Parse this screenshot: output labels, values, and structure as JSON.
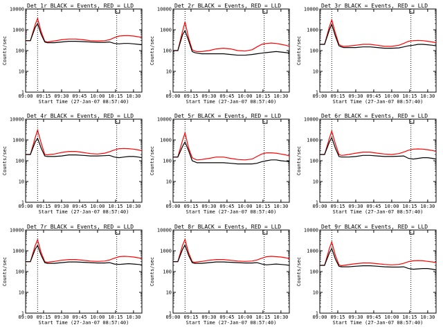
{
  "chart_data": {
    "type": "line",
    "layout": "3x3 grid",
    "log_scale_y": true,
    "ylim": [
      1,
      10000
    ],
    "xlim": [
      "09:00",
      "10:37"
    ],
    "x_tick_labels": [
      "09:00",
      "09:15",
      "09:30",
      "09:45",
      "10:00",
      "10:15",
      "10:30"
    ],
    "y_tick_labels": [
      "1",
      "10",
      "100",
      "1000",
      "10000"
    ],
    "ylabel": "Counts/sec",
    "xlabel": "Start Time (27-Jan-07 08:57:40)",
    "colors": {
      "events": "#000000",
      "lld": "#ff0000",
      "marker": "#000000"
    },
    "marker_lines_time": [
      "09:10",
      "10:16"
    ],
    "time_points": [
      "09:00",
      "09:04",
      "09:08",
      "09:10",
      "09:13",
      "09:16",
      "09:18",
      "09:20",
      "09:24",
      "09:30",
      "09:36",
      "09:42",
      "09:48",
      "09:54",
      "10:00",
      "10:06",
      "10:10",
      "10:14",
      "10:18",
      "10:22",
      "10:26",
      "10:30",
      "10:34",
      "10:37"
    ],
    "panels": [
      {
        "title": "Det 1r BLACK = Events, RED = LLD",
        "events": [
          300,
          300,
          1300,
          2000,
          600,
          260,
          240,
          240,
          240,
          260,
          280,
          280,
          270,
          260,
          250,
          250,
          260,
          220,
          210,
          220,
          220,
          210,
          200,
          190
        ],
        "lld": [
          300,
          300,
          1800,
          3500,
          800,
          280,
          260,
          270,
          290,
          330,
          360,
          360,
          330,
          300,
          290,
          300,
          330,
          420,
          500,
          520,
          520,
          500,
          460,
          420
        ]
      },
      {
        "title": "Det 2r BLACK = Events, RED = LLD",
        "events": [
          100,
          100,
          600,
          900,
          300,
          90,
          80,
          75,
          70,
          70,
          70,
          70,
          65,
          60,
          60,
          65,
          70,
          75,
          80,
          85,
          90,
          85,
          80,
          75
        ],
        "lld": [
          100,
          100,
          900,
          2400,
          400,
          110,
          95,
          90,
          90,
          100,
          120,
          130,
          120,
          100,
          95,
          110,
          150,
          200,
          220,
          230,
          220,
          200,
          180,
          160
        ]
      },
      {
        "title": "Det 3r BLACK = Events, RED = LLD",
        "events": [
          200,
          200,
          1000,
          1800,
          500,
          170,
          150,
          140,
          140,
          140,
          150,
          150,
          140,
          130,
          130,
          135,
          150,
          170,
          180,
          200,
          200,
          190,
          180,
          170
        ],
        "lld": [
          200,
          200,
          1400,
          3000,
          700,
          200,
          170,
          160,
          165,
          180,
          200,
          200,
          180,
          160,
          160,
          180,
          220,
          280,
          300,
          310,
          300,
          280,
          260,
          240
        ]
      },
      {
        "title": "Det 4r BLACK = Events, RED = LLD",
        "events": [
          200,
          200,
          800,
          1200,
          400,
          170,
          160,
          160,
          160,
          170,
          190,
          190,
          180,
          170,
          170,
          175,
          180,
          150,
          140,
          150,
          160,
          160,
          150,
          140
        ],
        "lld": [
          200,
          200,
          1300,
          3000,
          700,
          200,
          190,
          200,
          210,
          250,
          280,
          280,
          250,
          220,
          210,
          230,
          270,
          330,
          380,
          390,
          380,
          360,
          330,
          300
        ]
      },
      {
        "title": "Det 5r BLACK = Events, RED = LLD",
        "events": [
          150,
          150,
          500,
          800,
          300,
          100,
          90,
          80,
          80,
          80,
          80,
          80,
          75,
          70,
          70,
          70,
          75,
          90,
          100,
          110,
          110,
          100,
          95,
          90
        ],
        "lld": [
          150,
          150,
          1000,
          2200,
          400,
          140,
          120,
          110,
          115,
          130,
          150,
          150,
          130,
          115,
          110,
          120,
          160,
          210,
          240,
          240,
          230,
          210,
          190,
          170
        ]
      },
      {
        "title": "Det 6r BLACK = Events, RED = LLD",
        "events": [
          200,
          200,
          800,
          1300,
          400,
          160,
          150,
          150,
          150,
          160,
          180,
          180,
          170,
          160,
          160,
          165,
          170,
          130,
          120,
          130,
          140,
          140,
          130,
          120
        ],
        "lld": [
          200,
          200,
          1200,
          2700,
          650,
          200,
          180,
          185,
          200,
          230,
          260,
          260,
          230,
          210,
          200,
          220,
          260,
          320,
          360,
          370,
          360,
          340,
          310,
          280
        ]
      },
      {
        "title": "Det 7r BLACK = Events, RED = LLD",
        "events": [
          300,
          300,
          1200,
          1800,
          600,
          270,
          250,
          250,
          250,
          270,
          290,
          290,
          280,
          270,
          260,
          260,
          270,
          230,
          220,
          230,
          240,
          230,
          220,
          210
        ],
        "lld": [
          300,
          300,
          1800,
          3400,
          800,
          300,
          280,
          290,
          310,
          350,
          380,
          380,
          350,
          320,
          310,
          320,
          360,
          440,
          520,
          540,
          530,
          500,
          460,
          420
        ]
      },
      {
        "title": "Det 8r BLACK = Events, RED = LLD",
        "events": [
          300,
          300,
          1200,
          1900,
          600,
          270,
          250,
          250,
          250,
          270,
          290,
          290,
          280,
          270,
          260,
          260,
          270,
          230,
          210,
          220,
          230,
          220,
          210,
          200
        ],
        "lld": [
          300,
          300,
          1900,
          3500,
          800,
          300,
          280,
          290,
          310,
          350,
          380,
          380,
          350,
          320,
          310,
          320,
          360,
          440,
          520,
          540,
          520,
          500,
          460,
          420
        ]
      },
      {
        "title": "Det 9r BLACK = Events, RED = LLD",
        "events": [
          200,
          200,
          800,
          1300,
          400,
          180,
          170,
          170,
          170,
          180,
          190,
          190,
          180,
          170,
          165,
          165,
          170,
          140,
          130,
          135,
          140,
          140,
          130,
          120
        ],
        "lld": [
          200,
          200,
          1300,
          2700,
          600,
          210,
          190,
          200,
          215,
          240,
          260,
          260,
          240,
          220,
          210,
          220,
          250,
          300,
          330,
          340,
          330,
          310,
          290,
          270
        ]
      }
    ]
  }
}
